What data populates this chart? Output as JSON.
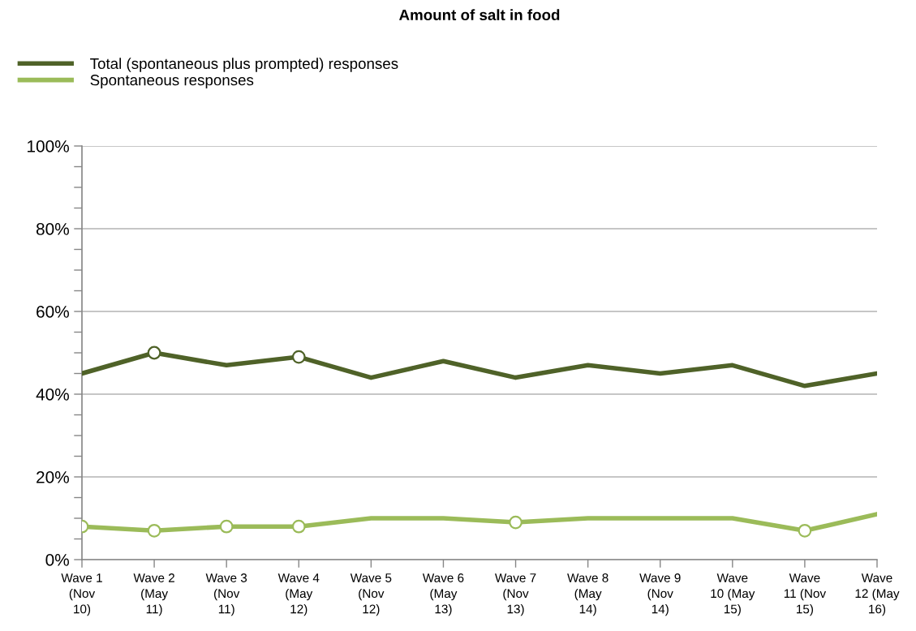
{
  "chart_data": {
    "type": "line",
    "title": "Amount of salt in food",
    "categories": [
      "Wave 1\n(Nov\n10)",
      "Wave 2\n(May\n11)",
      "Wave 3\n(Nov\n11)",
      "Wave 4\n(May\n12)",
      "Wave 5\n(Nov\n12)",
      "Wave 6\n(May\n13)",
      "Wave 7\n(Nov\n13)",
      "Wave 8\n(May\n14)",
      "Wave 9\n(Nov\n14)",
      "Wave\n10 (May\n15)",
      "Wave\n11 (Nov\n15)",
      "Wave\n12 (May\n16)"
    ],
    "series": [
      {
        "name": "Total (spontaneous plus prompted) responses",
        "color": "#4f6228",
        "values": [
          45,
          50,
          47,
          49,
          44,
          48,
          44,
          47,
          45,
          47,
          42,
          45
        ]
      },
      {
        "name": "Spontaneous responses",
        "color": "#9bbb59",
        "values": [
          8,
          7,
          8,
          8,
          10,
          10,
          9,
          10,
          10,
          10,
          7,
          11
        ]
      },
      {
        "type": "scatter",
        "marker": "circle",
        "color": "#4f6228",
        "values": [
          null,
          50,
          null,
          49,
          null,
          null,
          null,
          null,
          null,
          null,
          null,
          null
        ]
      },
      {
        "type": "scatter",
        "marker": "circle",
        "color": "#9bbb59",
        "values": [
          8,
          7,
          8,
          8,
          null,
          null,
          9,
          null,
          null,
          null,
          7,
          null
        ]
      }
    ],
    "ylim": [
      0,
      100
    ],
    "yticks": [
      {
        "value": 0,
        "label": "0%"
      },
      {
        "value": 5,
        "label": null
      },
      {
        "value": 10,
        "label": null
      },
      {
        "value": 15,
        "label": null
      },
      {
        "value": 20,
        "label": "20%"
      },
      {
        "value": 25,
        "label": null
      },
      {
        "value": 30,
        "label": null
      },
      {
        "value": 35,
        "label": null
      },
      {
        "value": 40,
        "label": "40%"
      },
      {
        "value": 45,
        "label": null
      },
      {
        "value": 50,
        "label": null
      },
      {
        "value": 55,
        "label": null
      },
      {
        "value": 60,
        "label": "60%"
      },
      {
        "value": 65,
        "label": null
      },
      {
        "value": 70,
        "label": null
      },
      {
        "value": 75,
        "label": null
      },
      {
        "value": 80,
        "label": "80%"
      },
      {
        "value": 85,
        "label": null
      },
      {
        "value": 90,
        "label": null
      },
      {
        "value": 95,
        "label": null
      },
      {
        "value": 100,
        "label": "100%"
      }
    ],
    "grid": "y",
    "legend": "top left"
  }
}
